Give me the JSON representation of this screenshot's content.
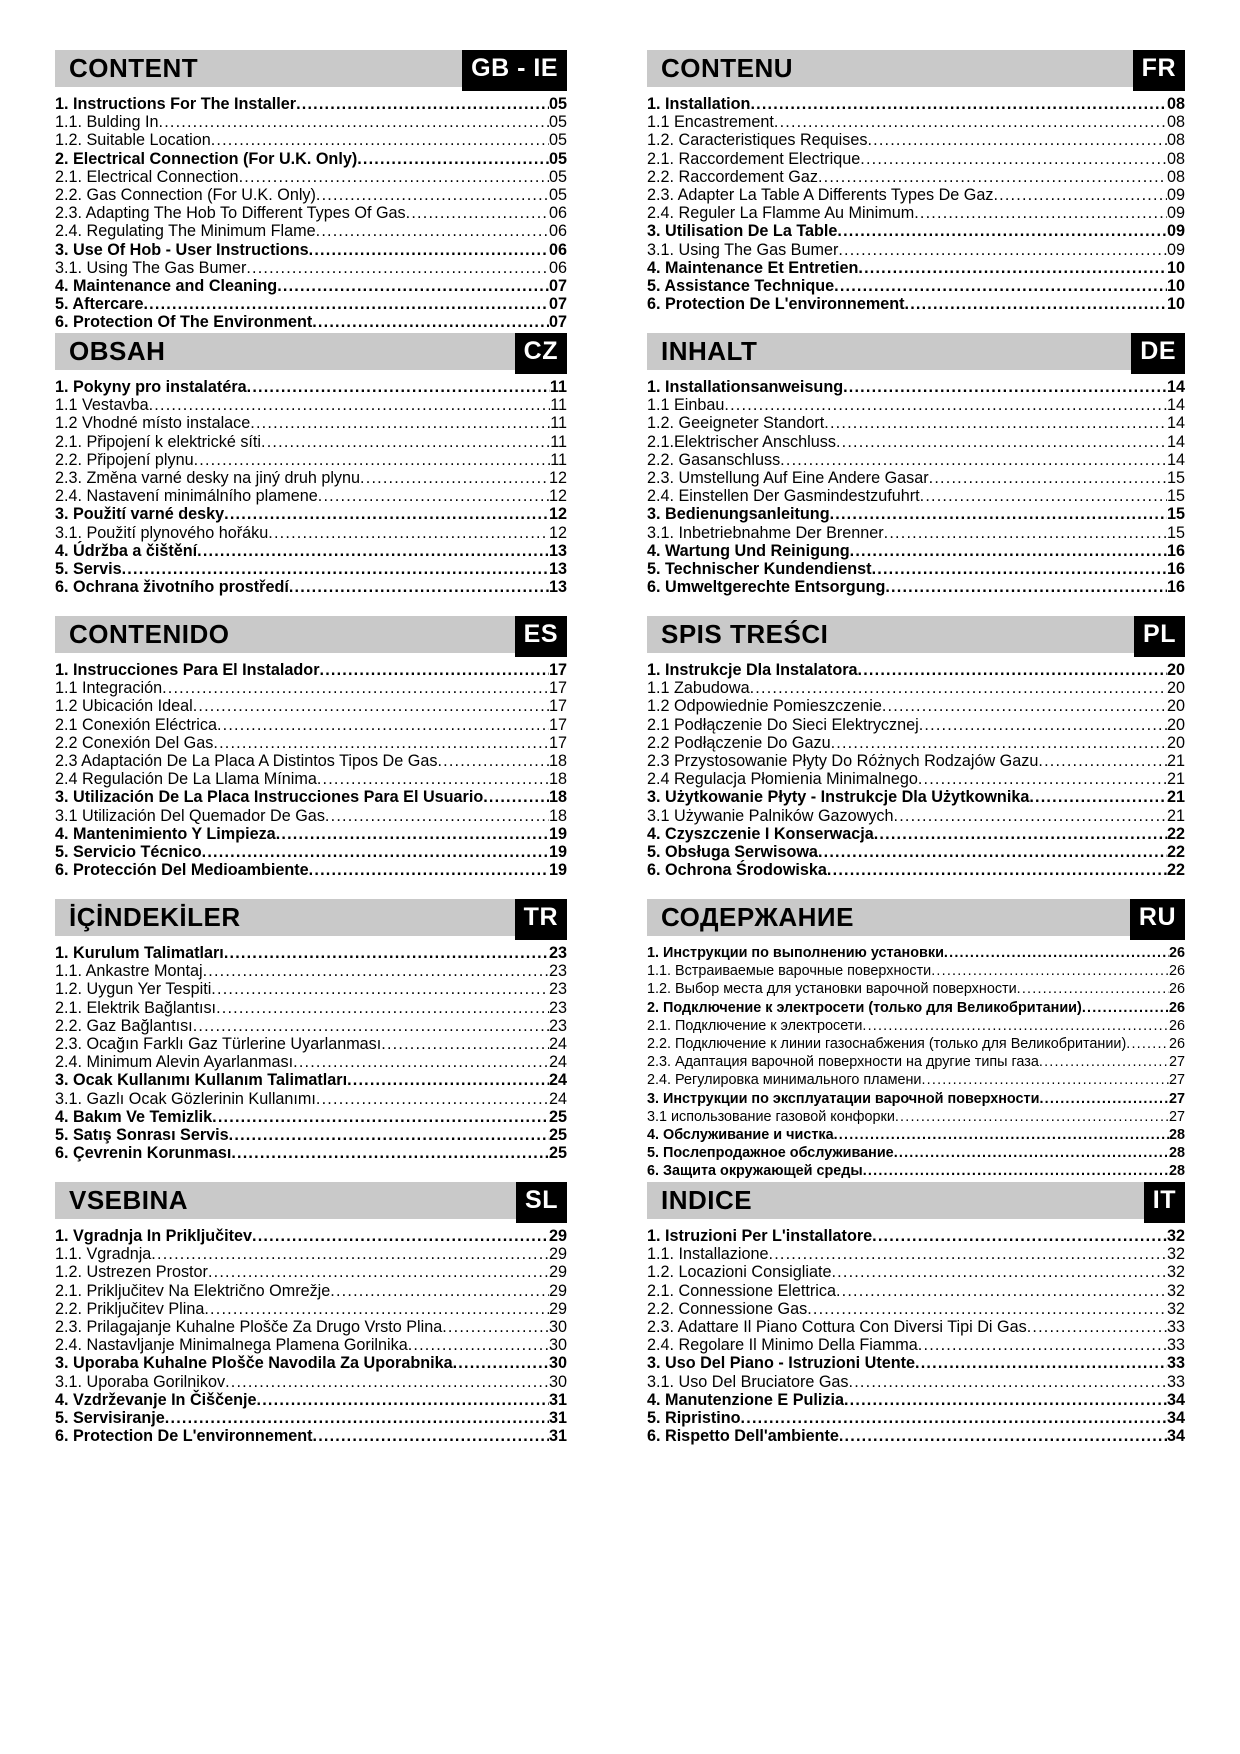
{
  "sections": [
    {
      "id": "gb",
      "title": "CONTENT",
      "lang": "GB - IE",
      "entries": [
        {
          "label": "1. Instructions For The Installer ",
          "page": "05",
          "bold": true
        },
        {
          "label": "1.1. Bulding In ",
          "page": "05",
          "bold": false
        },
        {
          "label": "1.2. Suitable Location ",
          "page": "05",
          "bold": false
        },
        {
          "label": "2. Electrical Connection (For U.K. Only) ",
          "page": "05",
          "bold": true
        },
        {
          "label": "2.1. Electrical Connection ",
          "page": "05",
          "bold": false
        },
        {
          "label": "2.2. Gas Connection (For U.K. Only)",
          "page": "05",
          "bold": false
        },
        {
          "label": "2.3. Adapting The Hob To Different Types Of Gas ",
          "page": "06",
          "bold": false
        },
        {
          "label": "2.4. Regulating The Minimum Flame",
          "page": "06",
          "bold": false
        },
        {
          "label": "3. Use Of Hob - User Instructions ",
          "page": "06",
          "bold": true
        },
        {
          "label": "3.1. Using The Gas Bumer",
          "page": "06",
          "bold": false
        },
        {
          "label": "4. Maintenance and Cleaning ",
          "page": "07",
          "bold": true
        },
        {
          "label": "5. Aftercare ",
          "page": "07",
          "bold": true
        },
        {
          "label": "6. Protection Of The Environment ",
          "page": "07",
          "bold": true
        }
      ]
    },
    {
      "id": "fr",
      "title": "CONTENU",
      "lang": "FR",
      "entries": [
        {
          "label": "1. Installation ",
          "page": "08",
          "bold": true
        },
        {
          "label": "1.1 Encastrement ",
          "page": "08",
          "bold": false
        },
        {
          "label": "1.2. Caracteristiques Requises ",
          "page": "08",
          "bold": false
        },
        {
          "label": "2.1. Raccordement Electrique ",
          "page": "08",
          "bold": false
        },
        {
          "label": "2.2. Raccordement Gaz ",
          "page": "08",
          "bold": false
        },
        {
          "label": "2.3. Adapter La Table A Differents Types De Gaz ",
          "page": "09",
          "bold": false
        },
        {
          "label": "2.4. Reguler La Flamme Au Minimum ",
          "page": "09",
          "bold": false
        },
        {
          "label": "3. Utilisation De La Table ",
          "page": "09",
          "bold": true
        },
        {
          "label": "3.1. Using The Gas Bumer",
          "page": "09",
          "bold": false
        },
        {
          "label": "4. Maintenance Et Entretien ",
          "page": "10",
          "bold": true
        },
        {
          "label": "5. Assistance Technique",
          "page": "10",
          "bold": true
        },
        {
          "label": "6. Protection De L'environnement ",
          "page": "10",
          "bold": true
        }
      ]
    },
    {
      "id": "cz",
      "title": "OBSAH",
      "lang": "CZ",
      "entries": [
        {
          "label": "1. Pokyny pro instalatéra ",
          "page": "11",
          "bold": true
        },
        {
          "label": "1.1 Vestavba ",
          "page": "11",
          "bold": false
        },
        {
          "label": "1.2 Vhodné místo instalace ",
          "page": "11",
          "bold": false
        },
        {
          "label": "2.1.  Připojení k elektrické síti ",
          "page": "11",
          "bold": false
        },
        {
          "label": "2.2. Připojení plynu ",
          "page": "11",
          "bold": false
        },
        {
          "label": "2.3. Změna varné desky na jiný druh plynu ",
          "page": "12",
          "bold": false
        },
        {
          "label": "2.4. Nastavení minimálního plamene ",
          "page": "12",
          "bold": false
        },
        {
          "label": "3. Použití varné desky ",
          "page": "12",
          "bold": true
        },
        {
          "label": "3.1. Použití plynového hořáku ",
          "page": "12",
          "bold": false
        },
        {
          "label": "4. Údržba a čištění ",
          "page": "13",
          "bold": true
        },
        {
          "label": "5. Servis",
          "page": "13",
          "bold": true
        },
        {
          "label": "6. Ochrana životního prostředí ",
          "page": "13",
          "bold": true
        }
      ]
    },
    {
      "id": "de",
      "title": "INHALT",
      "lang": "DE",
      "entries": [
        {
          "label": "1. Installationsanweisung ",
          "page": "14",
          "bold": true
        },
        {
          "label": "1.1 Einbau ",
          "page": "14",
          "bold": false
        },
        {
          "label": "1.2. Geeigneter Standort ",
          "page": "14",
          "bold": false
        },
        {
          "label": "2.1.Elektrischer Anschluss ",
          "page": "14",
          "bold": false
        },
        {
          "label": "2.2. Gasanschluss ",
          "page": "14",
          "bold": false
        },
        {
          "label": "2.3. Umstellung Auf Eine Andere Gasar ",
          "page": "15",
          "bold": false
        },
        {
          "label": "2.4. Einstellen Der Gasmindestzufuhrt ",
          "page": "15",
          "bold": false
        },
        {
          "label": "3. Bedienungsanleitung",
          "page": "15",
          "bold": true
        },
        {
          "label": "3.1. Inbetriebnahme Der Brenner ",
          "page": "15",
          "bold": false
        },
        {
          "label": "4. Wartung Und Reinigung ",
          "page": "16",
          "bold": true
        },
        {
          "label": "5. Technischer Kundendienst ",
          "page": "16",
          "bold": true
        },
        {
          "label": "6. Umweltgerechte Entsorgung ",
          "page": "16",
          "bold": true
        }
      ]
    },
    {
      "id": "es",
      "title": "CONTENIDO",
      "lang": "ES",
      "entries": [
        {
          "label": "1.  Instrucciones Para El Instalador ",
          "page": "17",
          "bold": true
        },
        {
          "label": "1.1 Integración ",
          "page": "17",
          "bold": false
        },
        {
          "label": "1.2 Ubicación Ideal ",
          "page": "17",
          "bold": false
        },
        {
          "label": "2.1 Conexión Eléctrica ",
          "page": "17",
          "bold": false
        },
        {
          "label": "2.2 Conexión Del Gas ",
          "page": "17",
          "bold": false
        },
        {
          "label": "2.3 Adaptación De La Placa A Distintos Tipos De Gas ",
          "page": "18",
          "bold": false
        },
        {
          "label": "2.4 Regulación De La Llama Mínima ",
          "page": "18",
          "bold": false
        },
        {
          "label": "3. Utilización De La Placa Instrucciones Para El Usuario ",
          "page": "18",
          "bold": true
        },
        {
          "label": "3.1 Utilización Del Quemador De Gas ",
          "page": "18",
          "bold": false
        },
        {
          "label": "4. Mantenimiento Y Limpieza ",
          "page": "19",
          "bold": true
        },
        {
          "label": "5. Servicio Técnico ",
          "page": "19",
          "bold": true
        },
        {
          "label": "6. Protección Del Medioambiente ",
          "page": "19",
          "bold": true
        }
      ]
    },
    {
      "id": "pl",
      "title": "SPIS TREŚCI",
      "lang": "PL",
      "entries": [
        {
          "label": "1. Instrukcje Dla Instalatora ",
          "page": "20",
          "bold": true
        },
        {
          "label": "1.1 Zabudowa ",
          "page": "20",
          "bold": false
        },
        {
          "label": "1.2 Odpowiednie Pomieszczenie ",
          "page": "20",
          "bold": false
        },
        {
          "label": "2.1 Podłączenie Do Sieci Elektrycznej ",
          "page": "20",
          "bold": false
        },
        {
          "label": "2.2 Podłączenie Do Gazu ",
          "page": "20",
          "bold": false
        },
        {
          "label": "2.3 Przystosowanie Płyty Do Różnych Rodzajów Gazu ",
          "page": "21",
          "bold": false
        },
        {
          "label": "2.4 Regulacja Płomienia Minimalnego ",
          "page": "21",
          "bold": false
        },
        {
          "label": "3. Użytkowanie Płyty - Instrukcje Dla Użytkownika ",
          "page": "21",
          "bold": true
        },
        {
          "label": "3.1 Używanie Palników Gazowych ",
          "page": "21",
          "bold": false
        },
        {
          "label": "4. Czyszczenie I Konserwacja ",
          "page": "22",
          "bold": true
        },
        {
          "label": "5. Obsługa Serwisowa ",
          "page": "22",
          "bold": true
        },
        {
          "label": "6. Ochrona Środowiska ",
          "page": "22",
          "bold": true
        }
      ]
    },
    {
      "id": "tr",
      "title": "İÇİNDEKİLER",
      "lang": "TR",
      "entries": [
        {
          "label": "1. Kurulum Talimatları ",
          "page": "23",
          "bold": true
        },
        {
          "label": "1.1. Ankastre Montaj ",
          "page": "23",
          "bold": false
        },
        {
          "label": "1.2. Uygun Yer Tespiti ",
          "page": "23",
          "bold": false
        },
        {
          "label": "2.1. Elektrik Bağlantısı ",
          "page": "23",
          "bold": false
        },
        {
          "label": "2.2. Gaz Bağlantısı ",
          "page": "23",
          "bold": false
        },
        {
          "label": "2.3. Ocağın Farklı Gaz Türlerine Uyarlanması ",
          "page": "24",
          "bold": false
        },
        {
          "label": "2.4. Minimum Alevin Ayarlanması ",
          "page": "24",
          "bold": false
        },
        {
          "label": "3. Ocak Kullanımı  Kullanım Talimatları ",
          "page": "24",
          "bold": true
        },
        {
          "label": "3.1. Gazlı Ocak Gözlerinin Kullanımı ",
          "page": "24",
          "bold": false
        },
        {
          "label": "4. Bakım Ve Temizlik ",
          "page": "25",
          "bold": true
        },
        {
          "label": "5. Satış Sonrası Servis",
          "page": "25",
          "bold": true
        },
        {
          "label": "6. Çevrenin Korunması ",
          "page": "25",
          "bold": true
        }
      ]
    },
    {
      "id": "ru",
      "title": "СОДЕРЖАНИЕ",
      "lang": "RU",
      "entries": [
        {
          "label": "1. Инструкции по выполнению установки ",
          "page": "26",
          "bold": true
        },
        {
          "label": "1.1. Встраиваемые варочные поверхности ",
          "page": "26",
          "bold": false
        },
        {
          "label": "1.2. Выбор места для установки варочной поверхности",
          "page": "26",
          "bold": false
        },
        {
          "label": "2. Подключение к электросети (только для Великобритании) ",
          "page": "26",
          "bold": true
        },
        {
          "label": "2.1. Подключение к электросети ",
          "page": "26",
          "bold": false
        },
        {
          "label": "2.2. Подключение к линии газоснабжения (только для Великобритании) ",
          "page": "26",
          "bold": false
        },
        {
          "label": "2.3. Адаптация варочной поверхности на другие типы газа ",
          "page": "27",
          "bold": false
        },
        {
          "label": "2.4. Регулировка минимального пламени ",
          "page": "27",
          "bold": false
        },
        {
          "label": "3. Инструкции по эксплуатации варочной поверхности ",
          "page": "27",
          "bold": true
        },
        {
          "label": "3.1 использование газовой конфорки ",
          "page": "27",
          "bold": false
        },
        {
          "label": "4. Обслуживание и чистка ",
          "page": "28",
          "bold": true
        },
        {
          "label": "5. Послепродажное обслуживание ",
          "page": "28",
          "bold": true
        },
        {
          "label": "6. Защита окружающей среды ",
          "page": "28",
          "bold": true
        }
      ]
    },
    {
      "id": "sl",
      "title": "VSEBINA",
      "lang": "SL",
      "entries": [
        {
          "label": "1. Vgradnja In Priključitev",
          "page": "29",
          "bold": true
        },
        {
          "label": "1.1. Vgradnja ",
          "page": "29",
          "bold": false
        },
        {
          "label": "1.2. Ustrezen Prostor ",
          "page": "29",
          "bold": false
        },
        {
          "label": "2.1. Priključitev Na Električno Omrežje ",
          "page": "29",
          "bold": false
        },
        {
          "label": "2.2. Priključitev Plina ",
          "page": "29",
          "bold": false
        },
        {
          "label": "2.3. Prilagajanje Kuhalne Plošče Za Drugo Vrsto Plina ",
          "page": "30",
          "bold": false
        },
        {
          "label": "2.4. Nastavljanje Minimalnega Plamena Gorilnika ",
          "page": "30",
          "bold": false
        },
        {
          "label": "3. Uporaba Kuhalne Plošče  Navodila Za Uporabnika ",
          "page": "30",
          "bold": true
        },
        {
          "label": "3.1. Uporaba Gorilnikov ",
          "page": "30",
          "bold": false
        },
        {
          "label": "4. Vzdrževanje In Čiščenje ",
          "page": "31",
          "bold": true
        },
        {
          "label": "5. Servisiranje ",
          "page": "31",
          "bold": true
        },
        {
          "label": "6. Protection De L'environnement ",
          "page": "31",
          "bold": true
        }
      ]
    },
    {
      "id": "it",
      "title": "INDICE",
      "lang": "IT",
      "entries": [
        {
          "label": "1. Istruzioni Per L'installatore ",
          "page": "32",
          "bold": true
        },
        {
          "label": "1.1. Installazione ",
          "page": "32",
          "bold": false
        },
        {
          "label": "1.2. Locazioni Consigliate ",
          "page": "32",
          "bold": false
        },
        {
          "label": "2.1. Connessione Elettrica",
          "page": "32",
          "bold": false
        },
        {
          "label": "2.2. Connessione Gas ",
          "page": "32",
          "bold": false
        },
        {
          "label": "2.3. Adattare Il Piano Cottura Con Diversi Tipi Di Gas ",
          "page": "33",
          "bold": false
        },
        {
          "label": "2.4. Regolare Il Minimo Della Fiamma ",
          "page": "33",
          "bold": false
        },
        {
          "label": "3. Uso Del Piano - Istruzioni Utente",
          "page": "33",
          "bold": true
        },
        {
          "label": "3.1. Uso Del Bruciatore Gas ",
          "page": "33",
          "bold": false
        },
        {
          "label": "4. Manutenzione E Pulizia ",
          "page": "34",
          "bold": true
        },
        {
          "label": "5. Ripristino ",
          "page": "34",
          "bold": true
        },
        {
          "label": "6. Rispetto Dell'ambiente ",
          "page": "34",
          "bold": true
        }
      ]
    }
  ]
}
